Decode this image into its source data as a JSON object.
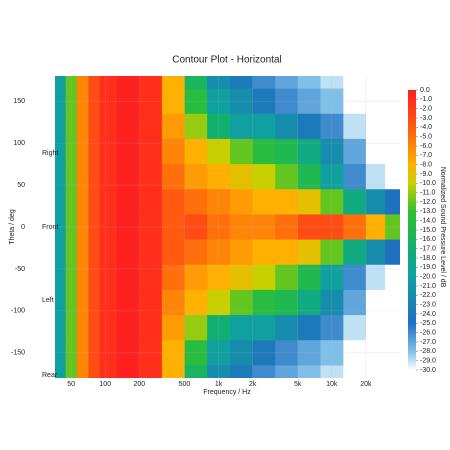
{
  "chart_data": {
    "type": "heatmap",
    "title": "Contour Plot - Horizontal",
    "x_label": "Frequency / Hz",
    "y_label": "Theta / deg",
    "colorbar_label": "Normalized Sound Pressure Level / dB",
    "x_log": true,
    "grid": true,
    "xlim": [
      36,
      40000
    ],
    "ylim": [
      -180,
      180
    ],
    "xticks": [
      50,
      100,
      200,
      500,
      {
        "value": 1000,
        "label": "1k"
      },
      {
        "value": 2000,
        "label": "2k"
      },
      {
        "value": 5000,
        "label": "5k"
      },
      {
        "value": 10000,
        "label": "10k"
      },
      {
        "value": 20000,
        "label": "20k"
      }
    ],
    "yticks": [
      -150,
      -100,
      -50,
      0,
      50,
      100,
      150
    ],
    "annotations": [
      "Right",
      "Front",
      "Left",
      "Rear"
    ],
    "clim": [
      -30,
      0
    ],
    "colorscale": [
      [
        0,
        "#ff2020"
      ],
      [
        -4,
        "#ff5a10"
      ],
      [
        -8,
        "#ffb000"
      ],
      [
        -10,
        "#c8d000"
      ],
      [
        -13,
        "#30c030"
      ],
      [
        -17,
        "#10b070"
      ],
      [
        -20,
        "#10a0a0"
      ],
      [
        -25,
        "#2070c0"
      ],
      [
        -28,
        "#80c0e8"
      ],
      [
        -30,
        "#ffffff"
      ]
    ],
    "cticks": [
      {
        "value": 0,
        "label": "0.0"
      },
      {
        "value": -1,
        "label": "-1.0"
      },
      {
        "value": -2,
        "label": "-2.0"
      },
      {
        "value": -3,
        "label": "-3.0"
      },
      {
        "value": -4,
        "label": "-4.0"
      },
      {
        "value": -5,
        "label": "-5.0"
      },
      {
        "value": -6,
        "label": "-6.0"
      },
      {
        "value": -7,
        "label": "-7.0"
      },
      {
        "value": -8,
        "label": "-8.0"
      },
      {
        "value": -9,
        "label": "-9.0"
      },
      {
        "value": -10,
        "label": "-10.0"
      },
      {
        "value": -11,
        "label": "-11.0"
      },
      {
        "value": -12,
        "label": "-12.0"
      },
      {
        "value": -13,
        "label": "-13.0"
      },
      {
        "value": -14,
        "label": "-14.0"
      },
      {
        "value": -15,
        "label": "-15.0"
      },
      {
        "value": -16,
        "label": "-16.0"
      },
      {
        "value": -17,
        "label": "-17.0"
      },
      {
        "value": -18,
        "label": "-18.0"
      },
      {
        "value": -19,
        "label": "-19.0"
      },
      {
        "value": -20,
        "label": "-20.0"
      },
      {
        "value": -21,
        "label": "-21.0"
      },
      {
        "value": -22,
        "label": "-22.0"
      },
      {
        "value": -23,
        "label": "-23.0"
      },
      {
        "value": -24,
        "label": "-24.0"
      },
      {
        "value": -25,
        "label": "-25.0"
      },
      {
        "value": -26,
        "label": "-26.0"
      },
      {
        "value": -27,
        "label": "-27.0"
      },
      {
        "value": -28,
        "label": "-28.0"
      },
      {
        "value": -29,
        "label": "-29.0"
      },
      {
        "value": -30,
        "label": "-30.0"
      }
    ],
    "x": [
      40,
      50,
      63,
      80,
      100,
      160,
      250,
      400,
      630,
      1000,
      1600,
      2500,
      4000,
      6300,
      10000,
      16000,
      25000,
      35000
    ],
    "y": [
      180,
      150,
      120,
      90,
      60,
      30,
      0,
      -30,
      -60,
      -90,
      -120,
      -150,
      -180
    ],
    "z": [
      [
        -20,
        -12,
        -6,
        -3,
        -1,
        0,
        -1,
        -8,
        -16,
        -22,
        -24,
        -26,
        -27,
        -28,
        -29,
        -30,
        -30,
        -30
      ],
      [
        -20,
        -12,
        -6,
        -3,
        -1,
        0,
        -1,
        -8,
        -14,
        -20,
        -22,
        -24,
        -26,
        -27,
        -28,
        -30,
        -30,
        -30
      ],
      [
        -20,
        -12,
        -6,
        -3,
        -1,
        0,
        -1,
        -7,
        -11,
        -17,
        -20,
        -20,
        -22,
        -24,
        -26,
        -29,
        -30,
        -30
      ],
      [
        -20,
        -12,
        -6,
        -3,
        -1,
        0,
        -1,
        -6,
        -8,
        -10,
        -12,
        -14,
        -15,
        -18,
        -22,
        -27,
        -30,
        -30
      ],
      [
        -20,
        -12,
        -6,
        -3,
        -1,
        0,
        -1,
        -5,
        -7,
        -8,
        -9,
        -10,
        -12,
        -15,
        -20,
        -26,
        -29,
        -30
      ],
      [
        -20,
        -12,
        -6,
        -3,
        -1,
        0,
        -1,
        -4,
        -5,
        -6,
        -7,
        -8,
        -8,
        -9,
        -12,
        -18,
        -22,
        -25
      ],
      [
        -20,
        -12,
        -6,
        -3,
        -1,
        0,
        -1,
        -4,
        -3,
        -5,
        -6,
        -6,
        -5,
        -3,
        -3,
        -5,
        -8,
        -12
      ],
      [
        -20,
        -12,
        -6,
        -3,
        -1,
        0,
        -1,
        -4,
        -5,
        -6,
        -7,
        -8,
        -8,
        -9,
        -12,
        -18,
        -22,
        -25
      ],
      [
        -20,
        -12,
        -6,
        -3,
        -1,
        0,
        -1,
        -5,
        -7,
        -8,
        -9,
        -10,
        -12,
        -15,
        -20,
        -26,
        -29,
        -30
      ],
      [
        -20,
        -12,
        -6,
        -3,
        -1,
        0,
        -1,
        -6,
        -8,
        -10,
        -12,
        -14,
        -15,
        -18,
        -22,
        -27,
        -30,
        -30
      ],
      [
        -20,
        -12,
        -6,
        -3,
        -1,
        0,
        -1,
        -7,
        -11,
        -17,
        -20,
        -20,
        -22,
        -24,
        -26,
        -29,
        -30,
        -30
      ],
      [
        -20,
        -12,
        -6,
        -3,
        -1,
        0,
        -1,
        -8,
        -14,
        -20,
        -22,
        -24,
        -26,
        -27,
        -28,
        -30,
        -30,
        -30
      ],
      [
        -20,
        -12,
        -6,
        -3,
        -1,
        0,
        -1,
        -8,
        -16,
        -22,
        -24,
        -26,
        -27,
        -28,
        -29,
        -30,
        -30,
        -30
      ]
    ]
  }
}
